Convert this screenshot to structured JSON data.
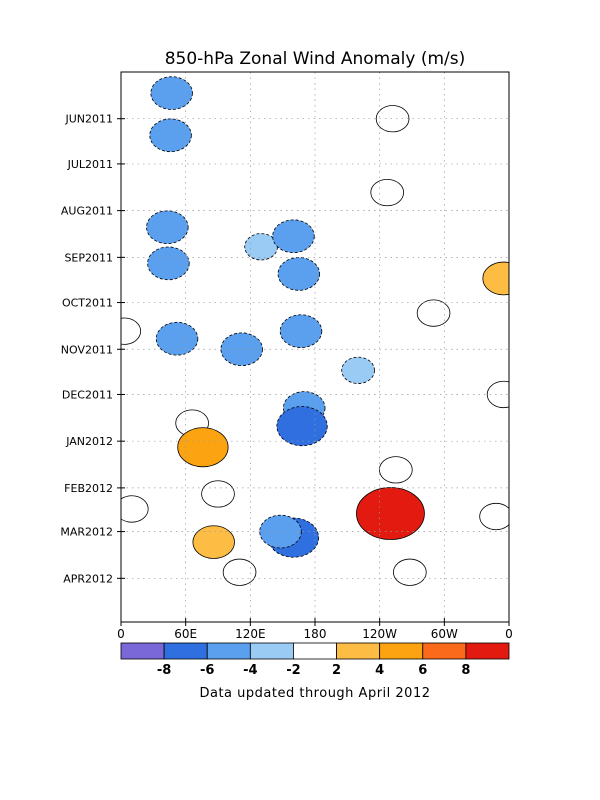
{
  "chart_data": {
    "type": "heatmap",
    "title": "850-hPa Zonal Wind Anomaly (m/s)",
    "xlabel": "",
    "ylabel": "",
    "x_ticks": [
      {
        "lon": 0,
        "label": "0"
      },
      {
        "lon": 60,
        "label": "60E"
      },
      {
        "lon": 120,
        "label": "120E"
      },
      {
        "lon": 180,
        "label": "180"
      },
      {
        "lon": 240,
        "label": "120W"
      },
      {
        "lon": 300,
        "label": "60W"
      },
      {
        "lon": 360,
        "label": "0"
      }
    ],
    "xlim": [
      0,
      360
    ],
    "y_axis": "time",
    "ylim": [
      "2011-05-01",
      "2012-04-30"
    ],
    "y_direction": "time increases downward",
    "y_ticks": [
      {
        "date": "2011-06-01",
        "label": "JUN2011"
      },
      {
        "date": "2011-07-01",
        "label": "JUL2011"
      },
      {
        "date": "2011-08-01",
        "label": "AUG2011"
      },
      {
        "date": "2011-09-01",
        "label": "SEP2011"
      },
      {
        "date": "2011-10-01",
        "label": "OCT2011"
      },
      {
        "date": "2011-11-01",
        "label": "NOV2011"
      },
      {
        "date": "2011-12-01",
        "label": "DEC2011"
      },
      {
        "date": "2012-01-01",
        "label": "JAN2012"
      },
      {
        "date": "2012-02-01",
        "label": "FEB2012"
      },
      {
        "date": "2012-03-01",
        "label": "MAR2012"
      },
      {
        "date": "2012-04-01",
        "label": "APR2012"
      }
    ],
    "grid": true,
    "contour_levels": [
      -10,
      -8,
      -6,
      -4,
      -2,
      2,
      4,
      6,
      8,
      10
    ],
    "colorbar": {
      "placement": "bottom",
      "labels": [
        "-8",
        "-6",
        "-4",
        "-2",
        "2",
        "4",
        "6",
        "8"
      ],
      "bins": [
        {
          "range": [
            -10,
            -8
          ],
          "color": "#7b68d8"
        },
        {
          "range": [
            -8,
            -6
          ],
          "color": "#2f6fe0"
        },
        {
          "range": [
            -6,
            -4
          ],
          "color": "#5aa0ee"
        },
        {
          "range": [
            -4,
            -2
          ],
          "color": "#9acbf5"
        },
        {
          "range": [
            -2,
            2
          ],
          "color": "#ffffff"
        },
        {
          "range": [
            2,
            4
          ],
          "color": "#fdbd45"
        },
        {
          "range": [
            4,
            6
          ],
          "color": "#fca312"
        },
        {
          "range": [
            6,
            8
          ],
          "color": "#fa6a1a"
        },
        {
          "range": [
            8,
            10
          ],
          "color": "#e21a10"
        }
      ]
    },
    "anomaly_features": [
      {
        "lon": 47,
        "date": "2011-05-15",
        "value": -4
      },
      {
        "lon": 46,
        "date": "2011-06-12",
        "value": -4
      },
      {
        "lon": 43,
        "date": "2011-08-12",
        "value": -4
      },
      {
        "lon": 44,
        "date": "2011-09-05",
        "value": -4
      },
      {
        "lon": 52,
        "date": "2011-10-25",
        "value": -4
      },
      {
        "lon": 130,
        "date": "2011-08-25",
        "value": -2
      },
      {
        "lon": 112,
        "date": "2011-11-01",
        "value": -4
      },
      {
        "lon": 160,
        "date": "2011-08-18",
        "value": -4
      },
      {
        "lon": 165,
        "date": "2011-09-12",
        "value": -4
      },
      {
        "lon": 167,
        "date": "2011-10-20",
        "value": -4
      },
      {
        "lon": 170,
        "date": "2011-12-10",
        "value": -4
      },
      {
        "lon": 168,
        "date": "2011-12-22",
        "value": -6
      },
      {
        "lon": 160,
        "date": "2012-03-05",
        "value": -6
      },
      {
        "lon": 148,
        "date": "2012-03-01",
        "value": -4
      },
      {
        "lon": 220,
        "date": "2011-11-15",
        "value": -2
      },
      {
        "lon": 252,
        "date": "2011-06-01",
        "value": 2
      },
      {
        "lon": 247,
        "date": "2011-07-20",
        "value": 2
      },
      {
        "lon": 290,
        "date": "2011-10-08",
        "value": 2
      },
      {
        "lon": 355,
        "date": "2011-09-15",
        "value": 4
      },
      {
        "lon": 355,
        "date": "2011-12-01",
        "value": 2
      },
      {
        "lon": 3,
        "date": "2011-10-20",
        "value": 2
      },
      {
        "lon": 66,
        "date": "2011-12-20",
        "value": 2
      },
      {
        "lon": 76,
        "date": "2012-01-05",
        "value": 6
      },
      {
        "lon": 90,
        "date": "2012-02-05",
        "value": 2
      },
      {
        "lon": 86,
        "date": "2012-03-08",
        "value": 4
      },
      {
        "lon": 110,
        "date": "2012-03-28",
        "value": 2
      },
      {
        "lon": 10,
        "date": "2012-02-15",
        "value": 2
      },
      {
        "lon": 255,
        "date": "2012-01-20",
        "value": 2
      },
      {
        "lon": 250,
        "date": "2012-02-22",
        "value": 4
      },
      {
        "lon": 250,
        "date": "2012-02-18",
        "value": 10
      },
      {
        "lon": 268,
        "date": "2012-03-28",
        "value": 2
      },
      {
        "lon": 348,
        "date": "2012-02-20",
        "value": 2
      }
    ]
  },
  "footnote": "Data updated through April 2012"
}
